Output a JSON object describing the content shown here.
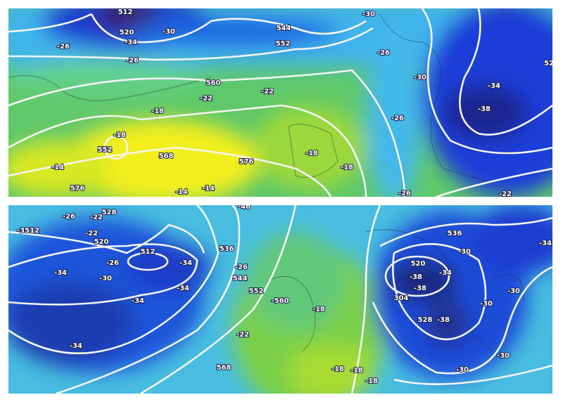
{
  "panels": [
    {
      "labels": [
        "512",
        "520",
        "-34",
        "-30",
        "-26",
        "-26",
        "544",
        "552",
        "-26",
        "-30",
        "-30",
        "-34",
        "-38",
        "560",
        "-22",
        "-22",
        "-18",
        "-18",
        "552",
        "568",
        "576",
        "-18",
        "-18",
        "-14",
        "576",
        "-14",
        "-14",
        "-26",
        "-26",
        "-22",
        "52"
      ]
    },
    {
      "labels": [
        "-3512",
        "-26",
        "528",
        "-22",
        "-22",
        "520",
        "-26",
        "512",
        "-34",
        "-34",
        "-30",
        "-34",
        "-34",
        "-34",
        "536",
        "-26",
        "544",
        "552",
        "-560",
        "-18",
        "-22",
        "568",
        "-18",
        "-18",
        "-18",
        "536",
        "-34",
        "-30",
        "520",
        "-38",
        "-38",
        "-34",
        "-30",
        "-30",
        "304",
        "528",
        "-38",
        "-30",
        "-30",
        "-46"
      ]
    }
  ]
}
